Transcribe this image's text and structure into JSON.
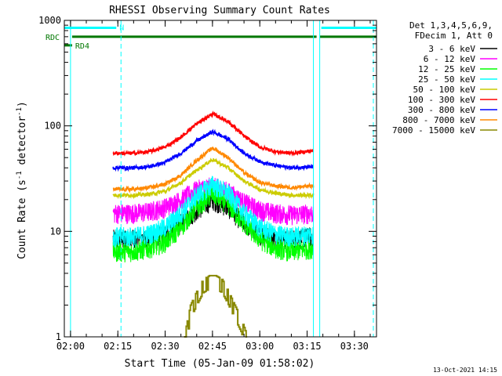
{
  "chart_data": {
    "type": "line",
    "title": "RHESSI Observing Summary Count Rates",
    "xlabel": "Start Time (05-Jan-09 01:58:02)",
    "ylabel": "Count Rate (s",
    "ylabel_sup1": "-1",
    "ylabel_mid": " detector",
    "ylabel_sup2": "-1",
    "ylabel_end": ")",
    "x_scale": "time",
    "y_scale": "log",
    "xlim": [
      "01:58:02",
      "03:37:00"
    ],
    "ylim": [
      1,
      1000
    ],
    "x_ticks": [
      "02:00",
      "02:15",
      "02:30",
      "02:45",
      "03:00",
      "03:15",
      "03:30"
    ],
    "y_ticks": [
      "1",
      "10",
      "100",
      "1000"
    ],
    "grid": false,
    "legend_placement": "right-outside",
    "legend_header": [
      "Det 1,3,4,5,6,9,",
      "FDecim 1, Att 0"
    ],
    "series": [
      {
        "name": "3 - 6 keV",
        "color": "#000000",
        "kind": "noisy",
        "x": [
          "02:13:30",
          "02:20",
          "02:25",
          "02:30",
          "02:35",
          "02:40",
          "02:45",
          "02:50",
          "02:55",
          "03:00",
          "03:05",
          "03:10",
          "03:17"
        ],
        "y": [
          8.5,
          8.5,
          8.8,
          9.5,
          12,
          16,
          20,
          17,
          12,
          9.5,
          8.5,
          8.5,
          9
        ]
      },
      {
        "name": "6 - 12 keV",
        "color": "#ff00ff",
        "kind": "noisy",
        "x": [
          "02:13:30",
          "02:20",
          "02:25",
          "02:30",
          "02:35",
          "02:40",
          "02:45",
          "02:50",
          "02:55",
          "03:00",
          "03:05",
          "03:10",
          "03:17"
        ],
        "y": [
          15,
          15,
          15.5,
          17,
          20,
          25,
          27,
          24,
          19,
          16,
          15,
          14.5,
          15
        ]
      },
      {
        "name": "12 - 25 keV",
        "color": "#00ff00",
        "kind": "noisy",
        "x": [
          "02:13:30",
          "02:20",
          "02:25",
          "02:30",
          "02:35",
          "02:40",
          "02:45",
          "02:50",
          "02:55",
          "03:00",
          "03:05",
          "03:10",
          "03:17"
        ],
        "y": [
          6.5,
          6.5,
          7,
          8,
          11,
          17,
          23,
          18,
          12,
          8.5,
          7,
          6.5,
          7
        ]
      },
      {
        "name": "25 - 50 keV",
        "color": "#00ffff",
        "kind": "noisy",
        "x": [
          "02:13:30",
          "02:20",
          "02:25",
          "02:30",
          "02:35",
          "02:40",
          "02:45",
          "02:50",
          "02:55",
          "03:00",
          "03:05",
          "03:10",
          "03:17"
        ],
        "y": [
          9,
          9,
          9.5,
          11,
          15,
          22,
          28,
          23,
          15,
          11,
          9.5,
          9,
          9.5
        ]
      },
      {
        "name": "50 - 100 keV",
        "color": "#cccc00",
        "kind": "smooth",
        "x": [
          "02:13:30",
          "02:20",
          "02:25",
          "02:30",
          "02:35",
          "02:40",
          "02:45",
          "02:50",
          "02:55",
          "03:00",
          "03:05",
          "03:10",
          "03:17"
        ],
        "y": [
          22,
          22,
          22.5,
          24,
          29,
          38,
          48,
          40,
          30,
          25,
          23,
          22,
          22
        ]
      },
      {
        "name": "100 - 300 keV",
        "color": "#ff0000",
        "kind": "smooth",
        "x": [
          "02:13:30",
          "02:20",
          "02:25",
          "02:30",
          "02:35",
          "02:40",
          "02:45",
          "02:50",
          "02:55",
          "03:00",
          "03:05",
          "03:10",
          "03:17"
        ],
        "y": [
          55,
          55,
          57,
          63,
          78,
          105,
          130,
          110,
          80,
          63,
          57,
          55,
          58
        ]
      },
      {
        "name": "300 - 800 keV",
        "color": "#0000ff",
        "kind": "smooth",
        "x": [
          "02:13:30",
          "02:20",
          "02:25",
          "02:30",
          "02:35",
          "02:40",
          "02:45",
          "02:50",
          "02:55",
          "03:00",
          "03:05",
          "03:10",
          "03:17"
        ],
        "y": [
          40,
          40,
          41,
          45,
          55,
          72,
          88,
          75,
          55,
          46,
          42,
          40,
          41
        ]
      },
      {
        "name": "800 - 7000 keV",
        "color": "#ff8800",
        "kind": "smooth",
        "x": [
          "02:13:30",
          "02:20",
          "02:25",
          "02:30",
          "02:35",
          "02:40",
          "02:45",
          "02:50",
          "02:55",
          "03:00",
          "03:05",
          "03:10",
          "03:17"
        ],
        "y": [
          25,
          25,
          26,
          28,
          34,
          47,
          62,
          50,
          36,
          29,
          27,
          26,
          27
        ]
      },
      {
        "name": "7000 - 15000 keV",
        "color": "#888800",
        "kind": "steps",
        "x": [
          "02:36",
          "02:38",
          "02:40",
          "02:42",
          "02:44",
          "02:46",
          "02:48",
          "02:50",
          "02:52",
          "02:54",
          "02:56"
        ],
        "y": [
          1,
          2,
          2.7,
          3.5,
          3.8,
          3.8,
          3.5,
          2.7,
          2,
          1.5,
          1
        ]
      }
    ],
    "annotations": [
      {
        "label": "N",
        "color": "#00ffff",
        "x_start": "01:58:02",
        "x_end": "02:14:30",
        "y": 850
      },
      {
        "label": "",
        "color": "#00ffff",
        "x_start": "03:19:30",
        "x_end": "03:37:00",
        "y": 850
      },
      {
        "label": "RDC",
        "color": "#007700",
        "x_start": "02:00:30",
        "x_end": "03:18:00",
        "y": 700
      },
      {
        "label": "",
        "color": "#007700",
        "x_start": "03:19:00",
        "x_end": "03:37:00",
        "y": 700
      },
      {
        "label": "RD4",
        "color": "#007700",
        "x_start": "01:58:02",
        "x_end": "02:00:30",
        "y": 580
      }
    ],
    "vlines": [
      {
        "x": "02:00",
        "color": "#00ffff",
        "style": "solid"
      },
      {
        "x": "02:16",
        "color": "#00ffff",
        "style": "dashed"
      },
      {
        "x": "03:17",
        "color": "#00ffff",
        "style": "solid"
      },
      {
        "x": "03:19",
        "color": "#00ffff",
        "style": "solid"
      },
      {
        "x": "03:36",
        "color": "#00ffff",
        "style": "dashed"
      }
    ]
  },
  "footer": {
    "timestamp": "13-Oct-2021 14:15"
  }
}
